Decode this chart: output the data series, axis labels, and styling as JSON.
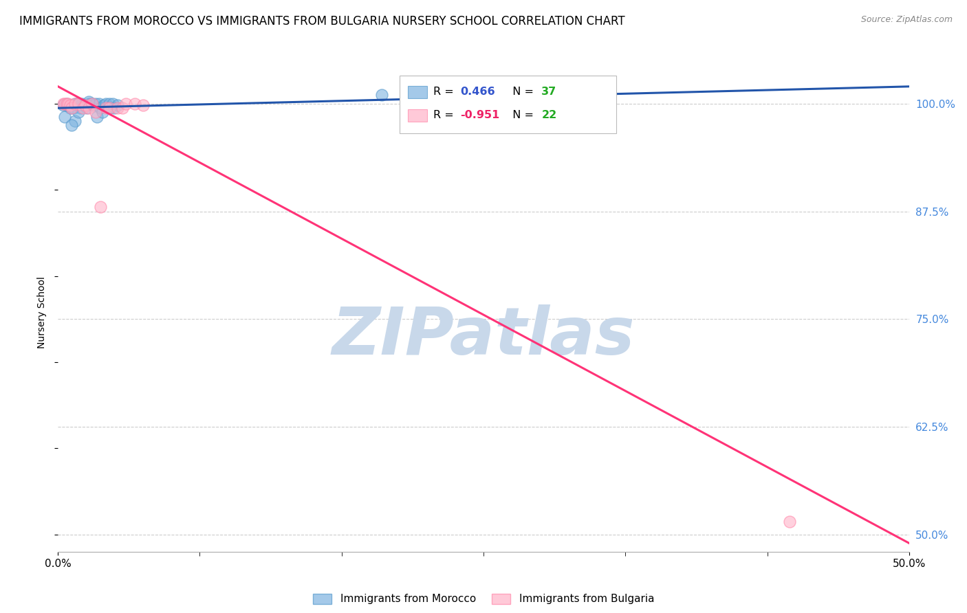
{
  "title": "IMMIGRANTS FROM MOROCCO VS IMMIGRANTS FROM BULGARIA NURSERY SCHOOL CORRELATION CHART",
  "source": "Source: ZipAtlas.com",
  "ylabel": "Nursery School",
  "yticks": [
    50.0,
    62.5,
    75.0,
    87.5,
    100.0
  ],
  "ytick_labels": [
    "50.0%",
    "62.5%",
    "75.0%",
    "87.5%",
    "100.0%"
  ],
  "xmin": 0.0,
  "xmax": 50.0,
  "ymin": 48.0,
  "ymax": 103.5,
  "morocco_color": "#7EB3E0",
  "bulgaria_color": "#FFB3C8",
  "morocco_edge_color": "#5599CC",
  "bulgaria_edge_color": "#FF88AA",
  "morocco_R": 0.466,
  "morocco_N": 37,
  "bulgaria_R": -0.951,
  "bulgaria_N": 22,
  "legend_R_blue_color": "#3355CC",
  "legend_N_green_color": "#22AA22",
  "legend_R_pink_color": "#EE2266",
  "watermark": "ZIPatlas",
  "watermark_color": "#C8D8EA",
  "morocco_scatter_x": [
    0.3,
    0.5,
    0.6,
    0.7,
    0.8,
    0.9,
    1.0,
    1.0,
    1.1,
    1.2,
    1.3,
    1.4,
    1.5,
    1.6,
    1.7,
    1.8,
    1.9,
    2.0,
    2.1,
    2.2,
    2.3,
    2.4,
    2.5,
    2.6,
    2.7,
    2.8,
    3.0,
    3.0,
    3.2,
    3.3,
    3.5,
    0.4,
    0.5,
    0.8,
    19.0,
    1.2,
    1.8
  ],
  "morocco_scatter_y": [
    99.8,
    100.0,
    99.8,
    99.5,
    99.5,
    99.5,
    100.0,
    98.0,
    100.0,
    100.0,
    99.5,
    100.0,
    99.8,
    99.8,
    99.5,
    100.0,
    100.0,
    100.0,
    99.8,
    100.0,
    98.5,
    100.0,
    99.5,
    99.0,
    99.8,
    100.0,
    100.0,
    99.5,
    100.0,
    99.5,
    99.8,
    98.5,
    99.8,
    97.5,
    101.0,
    99.0,
    100.2
  ],
  "bulgaria_scatter_x": [
    0.3,
    0.4,
    0.5,
    0.6,
    0.7,
    0.8,
    1.0,
    1.2,
    1.5,
    1.6,
    1.8,
    2.0,
    2.2,
    2.5,
    2.8,
    3.0,
    3.5,
    3.8,
    4.0,
    4.5,
    5.0,
    43.0
  ],
  "bulgaria_scatter_y": [
    100.0,
    100.0,
    100.0,
    100.0,
    99.8,
    99.5,
    100.0,
    100.0,
    99.5,
    99.8,
    99.5,
    100.0,
    99.0,
    88.0,
    99.5,
    99.5,
    99.5,
    99.5,
    100.0,
    100.0,
    99.8,
    51.5
  ],
  "morocco_trend_x": [
    0.0,
    50.0
  ],
  "morocco_trend_y": [
    99.5,
    102.0
  ],
  "bulgaria_trend_x": [
    0.0,
    50.0
  ],
  "bulgaria_trend_y": [
    102.0,
    49.0
  ],
  "grid_color": "#CCCCCC",
  "title_fontsize": 12,
  "source_fontsize": 9,
  "tick_fontsize": 11,
  "ylabel_fontsize": 10
}
